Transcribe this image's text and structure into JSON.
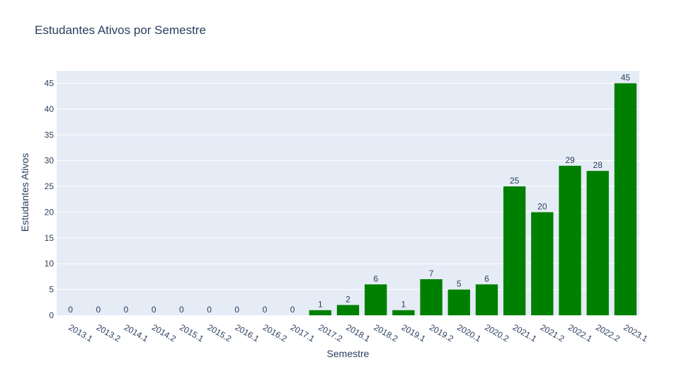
{
  "chart_data": {
    "type": "bar",
    "title": "Estudantes Ativos por Semestre",
    "xlabel": "Semestre",
    "ylabel": "Estudantes Ativos",
    "categories": [
      "2013.1",
      "2013.2",
      "2014.1",
      "2014.2",
      "2015.1",
      "2015.2",
      "2016.1",
      "2016.2",
      "2017.1",
      "2017.2",
      "2018.1",
      "2018.2",
      "2019.1",
      "2019.2",
      "2020.1",
      "2020.2",
      "2021.1",
      "2021.2",
      "2022.1",
      "2022.2",
      "2023.1"
    ],
    "values": [
      0,
      0,
      0,
      0,
      0,
      0,
      0,
      0,
      0,
      1,
      2,
      6,
      1,
      7,
      5,
      6,
      25,
      20,
      29,
      28,
      45
    ],
    "ylim": [
      0,
      47.4
    ],
    "yticks": [
      0,
      5,
      10,
      15,
      20,
      25,
      30,
      35,
      40,
      45
    ],
    "grid": true,
    "bar_color": "#008000",
    "plot_bg": "#e5ecf6"
  }
}
